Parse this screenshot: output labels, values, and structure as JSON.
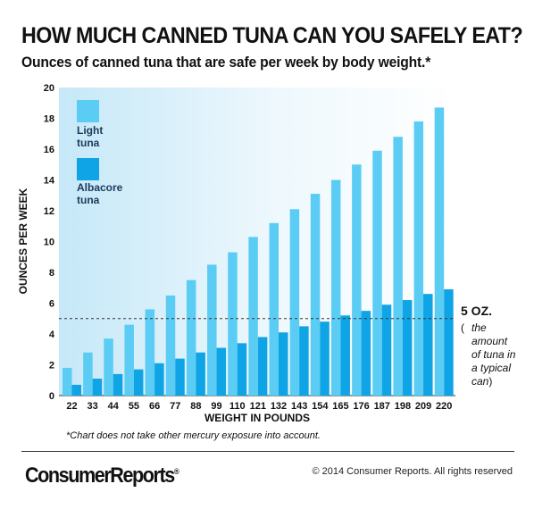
{
  "header": {
    "title": "HOW MUCH CANNED TUNA CAN YOU SAFELY EAT?",
    "subtitle": "Ounces of canned tuna that are safe per week by body weight.*"
  },
  "annotation": {
    "line_label": "5 OZ.",
    "open_paren": "(",
    "note_lines": [
      "the",
      "amount",
      "of tuna in",
      "a typical",
      "can"
    ],
    "close_paren": ")"
  },
  "footnote": "*Chart does not take other mercury exposure into account.",
  "footer": {
    "logo": "ConsumerReports",
    "logo_mark": "®",
    "copyright": "© 2014 Consumer Reports. All rights reserved"
  },
  "chart_data": {
    "type": "bar",
    "title": "HOW MUCH CANNED TUNA CAN YOU SAFELY EAT?",
    "subtitle": "Ounces of canned tuna that are safe per week by body weight.*",
    "xlabel": "WEIGHT IN POUNDS",
    "ylabel": "OUNCES PER WEEK",
    "ylim": [
      0,
      20
    ],
    "yticks": [
      0,
      2,
      4,
      6,
      8,
      10,
      12,
      14,
      16,
      18,
      20
    ],
    "categories": [
      "22",
      "33",
      "44",
      "55",
      "66",
      "77",
      "88",
      "99",
      "110",
      "121",
      "132",
      "143",
      "154",
      "165",
      "176",
      "187",
      "198",
      "209",
      "220"
    ],
    "series": [
      {
        "name": "Light tuna",
        "color": "#5bcdf4",
        "values": [
          1.8,
          2.8,
          3.7,
          4.6,
          5.6,
          6.5,
          7.5,
          8.5,
          9.3,
          10.3,
          11.2,
          12.1,
          13.1,
          14.0,
          15.0,
          15.9,
          16.8,
          17.8,
          18.7
        ]
      },
      {
        "name": "Albacore tuna",
        "color": "#0fa4e6",
        "values": [
          0.7,
          1.1,
          1.4,
          1.7,
          2.1,
          2.4,
          2.8,
          3.1,
          3.4,
          3.8,
          4.1,
          4.5,
          4.8,
          5.2,
          5.5,
          5.9,
          6.2,
          6.6,
          6.9
        ]
      }
    ],
    "reference_line": {
      "value": 5,
      "label": "5 OZ."
    },
    "legend_position": "top-left",
    "grid": false,
    "background": "light-blue gradient"
  }
}
